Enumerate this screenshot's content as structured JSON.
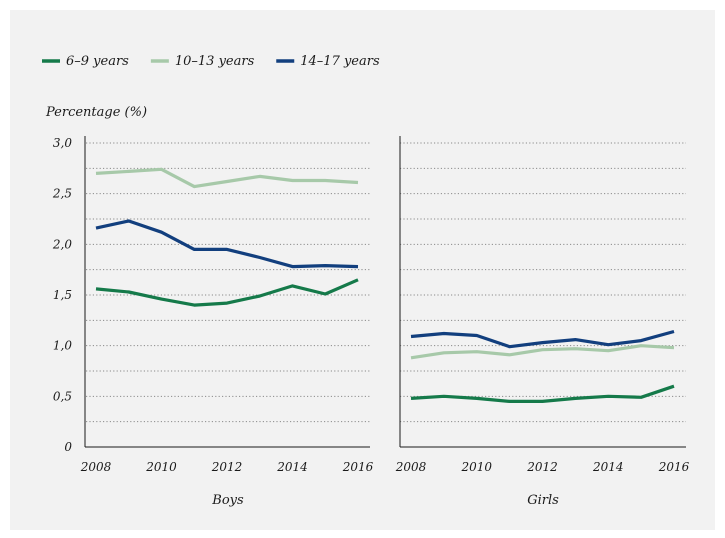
{
  "chart_data": {
    "type": "line",
    "legend": {
      "placement": "top-left"
    },
    "ylabel": "Percentage (%)",
    "ylim": [
      0,
      3.0
    ],
    "yticks": [
      {
        "value": 0,
        "label": "0"
      },
      {
        "value": 0.5,
        "label": "0,5"
      },
      {
        "value": 1.0,
        "label": "1,0"
      },
      {
        "value": 1.5,
        "label": "1,5"
      },
      {
        "value": 2.0,
        "label": "2,0"
      },
      {
        "value": 2.5,
        "label": "2,5"
      },
      {
        "value": 3.0,
        "label": "3,0"
      }
    ],
    "xlim": [
      2008,
      2016
    ],
    "xticks": [
      2008,
      2010,
      2012,
      2014,
      2016
    ],
    "x": [
      2008,
      2009,
      2010,
      2011,
      2012,
      2013,
      2014,
      2015,
      2016
    ],
    "grid": "horizontal-dotted",
    "series_styles": [
      {
        "name": "6–9 years",
        "color": "#157a4a"
      },
      {
        "name": "10–13 years",
        "color": "#a7c9a9"
      },
      {
        "name": "14–17 years",
        "color": "#123f7e"
      }
    ],
    "panels": [
      {
        "title": "Boys",
        "series": [
          {
            "name": "6–9 years",
            "values": [
              1.56,
              1.53,
              1.46,
              1.4,
              1.42,
              1.49,
              1.59,
              1.51,
              1.65
            ]
          },
          {
            "name": "10–13 years",
            "values": [
              2.7,
              2.72,
              2.74,
              2.57,
              2.62,
              2.67,
              2.63,
              2.63,
              2.61
            ]
          },
          {
            "name": "14–17 years",
            "values": [
              2.16,
              2.23,
              2.12,
              1.95,
              1.95,
              1.87,
              1.78,
              1.79,
              1.78
            ]
          }
        ]
      },
      {
        "title": "Girls",
        "series": [
          {
            "name": "6–9 years",
            "values": [
              0.48,
              0.5,
              0.48,
              0.45,
              0.45,
              0.48,
              0.5,
              0.49,
              0.6
            ]
          },
          {
            "name": "10–13 years",
            "values": [
              0.88,
              0.93,
              0.94,
              0.91,
              0.96,
              0.97,
              0.95,
              1.0,
              0.98
            ]
          },
          {
            "name": "14–17 years",
            "values": [
              1.09,
              1.12,
              1.1,
              0.99,
              1.03,
              1.06,
              1.01,
              1.05,
              1.14
            ]
          }
        ]
      }
    ]
  }
}
